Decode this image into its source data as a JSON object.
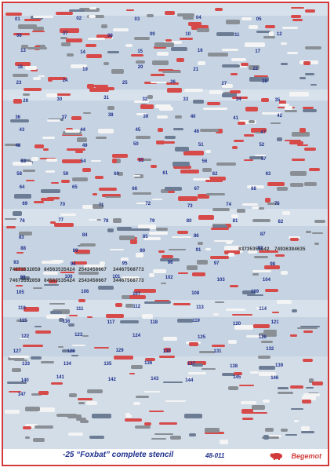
{
  "sheet": {
    "title": "-25 “Foxbat” complete stencil",
    "code": "48-011",
    "brand": "Begemot",
    "colors": {
      "background": "#c5d3e2",
      "border": "#d23a3a",
      "text": "#1d2e8c",
      "red": "#d64a4a",
      "grey": "#8a8f96",
      "white": "#f4f4f4"
    }
  },
  "labels": [
    "01",
    "02",
    "03",
    "04",
    "05",
    "06",
    "07",
    "08",
    "09",
    "10",
    "11",
    "12",
    "13",
    "14",
    "15",
    "16",
    "17",
    "18",
    "19",
    "20",
    "21",
    "22",
    "23",
    "24",
    "25",
    "26",
    "27",
    "28",
    "29",
    "30",
    "31",
    "32",
    "33",
    "34",
    "35",
    "36",
    "37",
    "38",
    "39",
    "40",
    "41",
    "42",
    "43",
    "44",
    "45",
    "46",
    "47",
    "48",
    "49",
    "50",
    "51",
    "52",
    "53",
    "54",
    "55",
    "56",
    "57",
    "58",
    "59",
    "60",
    "61",
    "62",
    "63",
    "64",
    "65",
    "66",
    "67",
    "68",
    "69",
    "70",
    "71",
    "72",
    "73",
    "74",
    "75",
    "76",
    "77",
    "78",
    "79",
    "80",
    "81",
    "82",
    "83",
    "84",
    "85",
    "86",
    "87",
    "88",
    "89",
    "90",
    "91",
    "92",
    "93",
    "94",
    "95",
    "96",
    "97",
    "98",
    "99",
    "100",
    "101",
    "102",
    "103",
    "104",
    "105",
    "106",
    "107",
    "108",
    "109",
    "110",
    "111",
    "112",
    "113",
    "114",
    "115",
    "116",
    "117",
    "118",
    "119",
    "120",
    "121",
    "122",
    "123",
    "124",
    "125",
    "126",
    "127",
    "128",
    "129",
    "130",
    "131",
    "132",
    "133",
    "134",
    "135",
    "136",
    "137",
    "138",
    "139",
    "140",
    "141",
    "142",
    "143",
    "144",
    "145",
    "146",
    "147"
  ],
  "serials": [
    "74673532859",
    "84563535424",
    "2543458667",
    "34467568773",
    "83735356542",
    "74936384635",
    "74673532859",
    "84563535424",
    "2543458667",
    "34467568773"
  ]
}
